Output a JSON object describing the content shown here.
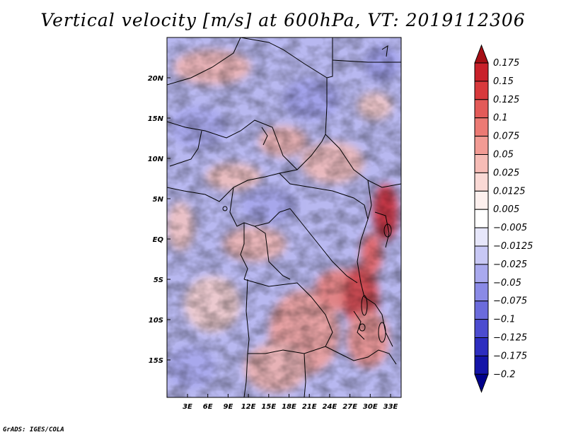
{
  "title": "Vertical velocity [m/s] at 600hPa, VT: 2019112306",
  "credit": "GrADS: IGES/COLA",
  "map": {
    "lat_labels": [
      "20N",
      "15N",
      "10N",
      "5N",
      "EQ",
      "5S",
      "10S",
      "15S"
    ],
    "lon_labels": [
      "3E",
      "6E",
      "9E",
      "12E",
      "15E",
      "18E",
      "21E",
      "24E",
      "27E",
      "30E",
      "33E"
    ]
  },
  "colorbar": {
    "levels": [
      "0.175",
      "0.15",
      "0.125",
      "0.1",
      "0.075",
      "0.05",
      "0.025",
      "0.0125",
      "0.005",
      "−0.005",
      "−0.0125",
      "−0.025",
      "−0.05",
      "−0.075",
      "−0.1",
      "−0.125",
      "−0.175",
      "−0.2"
    ],
    "colors": [
      "#a50f15",
      "#c9202a",
      "#d8393c",
      "#e35a58",
      "#ec7a74",
      "#f29b94",
      "#f6bcb6",
      "#fad9d5",
      "#fdf0ee",
      "#ffffff",
      "#e6e6fa",
      "#c8c8f5",
      "#a9a9ee",
      "#8a8ae6",
      "#6b6bdc",
      "#4c4cd0",
      "#2d2dc0",
      "#1414a8",
      "#00008b"
    ]
  }
}
